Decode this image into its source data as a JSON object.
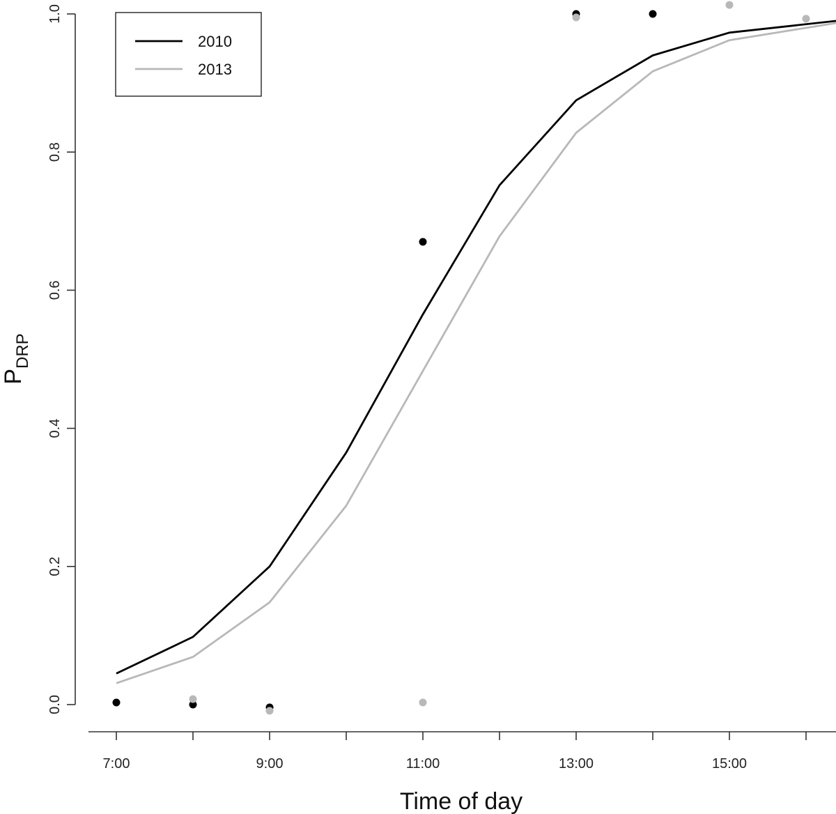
{
  "chart_data": {
    "type": "line",
    "xlabel": "Time of day",
    "ylabel": {
      "main": "P",
      "sub": "DRP"
    },
    "x_ticks": [
      {
        "value": 7,
        "label": "7:00"
      },
      {
        "value": 9,
        "label": "9:00"
      },
      {
        "value": 11,
        "label": "11:00"
      },
      {
        "value": 13,
        "label": "13:00"
      },
      {
        "value": 15,
        "label": "15:00"
      }
    ],
    "y_ticks": [
      "0.0",
      "0.2",
      "0.4",
      "0.6",
      "0.8",
      "1.0"
    ],
    "y_tick_values": [
      0.0,
      0.2,
      0.4,
      0.6,
      0.8,
      1.0
    ],
    "xlim": [
      6.6,
      16.4
    ],
    "ylim": [
      -0.04,
      1.0
    ],
    "grid": false,
    "legend": {
      "position": "top-left",
      "entries": [
        {
          "label": "2010",
          "color": "#000000"
        },
        {
          "label": "2013",
          "color": "#b8b8b8"
        }
      ]
    },
    "series": [
      {
        "name": "2010",
        "color": "#000000",
        "fitted": {
          "x": [
            7,
            8,
            9,
            10,
            11,
            12,
            13,
            14,
            15,
            16.4
          ],
          "y": [
            0.045,
            0.098,
            0.2,
            0.365,
            0.565,
            0.752,
            0.875,
            0.94,
            0.973,
            0.99
          ]
        },
        "observed": {
          "x": [
            7,
            8,
            9,
            11,
            13,
            14
          ],
          "y": [
            0.003,
            0.0,
            -0.004,
            0.67,
            1.0,
            1.0
          ]
        }
      },
      {
        "name": "2013",
        "color": "#b8b8b8",
        "fitted": {
          "x": [
            7,
            8,
            9,
            10,
            11,
            12,
            13,
            14,
            15,
            16.4
          ],
          "y": [
            0.031,
            0.069,
            0.148,
            0.288,
            0.483,
            0.678,
            0.828,
            0.917,
            0.962,
            0.987
          ]
        },
        "observed": {
          "x": [
            8,
            9,
            11,
            13,
            15,
            16
          ],
          "y": [
            0.008,
            -0.009,
            0.003,
            0.995,
            1.013,
            0.993
          ]
        }
      }
    ]
  }
}
